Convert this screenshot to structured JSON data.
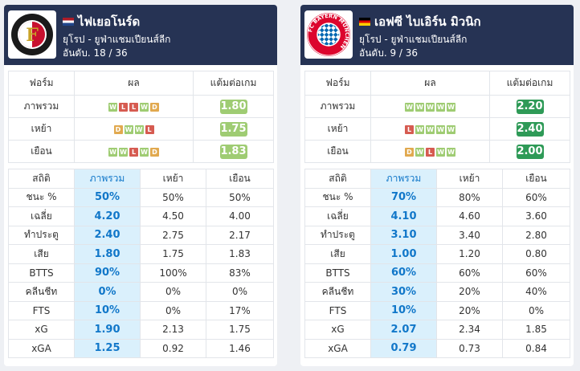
{
  "teams": [
    {
      "name": "ไฟเยอโนร์ด",
      "league": "ยุโรป - ยูฟ่าแชมเปียนส์ลีก",
      "rank": "อันดับ. 18 / 36",
      "logo_text": "F",
      "form_table": {
        "headers": [
          "ฟอร์ม",
          "ผล",
          "แต้มต่อเกม"
        ],
        "rows": [
          {
            "label": "ภาพรวม",
            "results": [
              "W",
              "L",
              "L",
              "W",
              "D"
            ],
            "ppg": "1.80",
            "ppg_color": "#9fcc73"
          },
          {
            "label": "เหย้า",
            "results": [
              "D",
              "W",
              "W",
              "L"
            ],
            "ppg": "1.75",
            "ppg_color": "#9fcc73"
          },
          {
            "label": "เยือน",
            "results": [
              "W",
              "W",
              "L",
              "W",
              "D"
            ],
            "ppg": "1.83",
            "ppg_color": "#9fcc73"
          }
        ]
      },
      "stats_table": {
        "headers": [
          "สถิติ",
          "ภาพรวม",
          "เหย้า",
          "เยือน"
        ],
        "rows": [
          {
            "label": "ชนะ %",
            "overall": "50%",
            "home": "50%",
            "away": "50%"
          },
          {
            "label": "เฉลี่ย",
            "overall": "4.20",
            "home": "4.50",
            "away": "4.00"
          },
          {
            "label": "ทำประตู",
            "overall": "2.40",
            "home": "2.75",
            "away": "2.17"
          },
          {
            "label": "เสีย",
            "overall": "1.80",
            "home": "1.75",
            "away": "1.83"
          },
          {
            "label": "BTTS",
            "overall": "90%",
            "home": "100%",
            "away": "83%"
          },
          {
            "label": "คลีนชีท",
            "overall": "0%",
            "home": "0%",
            "away": "0%"
          },
          {
            "label": "FTS",
            "overall": "10%",
            "home": "0%",
            "away": "17%"
          },
          {
            "label": "xG",
            "overall": "1.90",
            "home": "2.13",
            "away": "1.75"
          },
          {
            "label": "xGA",
            "overall": "1.25",
            "home": "0.92",
            "away": "1.46"
          }
        ]
      }
    },
    {
      "name": "เอฟซี ไบเอิร์น มิวนิก",
      "league": "ยุโรป - ยูฟ่าแชมเปียนส์ลีก",
      "rank": "อันดับ. 9 / 36",
      "logo_text": "FC BAYERN MÜNCHEN",
      "form_table": {
        "headers": [
          "ฟอร์ม",
          "ผล",
          "แต้มต่อเกม"
        ],
        "rows": [
          {
            "label": "ภาพรวม",
            "results": [
              "W",
              "W",
              "W",
              "W",
              "W"
            ],
            "ppg": "2.20",
            "ppg_color": "#2e9a57"
          },
          {
            "label": "เหย้า",
            "results": [
              "L",
              "W",
              "W",
              "W",
              "W"
            ],
            "ppg": "2.40",
            "ppg_color": "#2e9a57"
          },
          {
            "label": "เยือน",
            "results": [
              "D",
              "W",
              "L",
              "W",
              "W"
            ],
            "ppg": "2.00",
            "ppg_color": "#2e9a57"
          }
        ]
      },
      "stats_table": {
        "headers": [
          "สถิติ",
          "ภาพรวม",
          "เหย้า",
          "เยือน"
        ],
        "rows": [
          {
            "label": "ชนะ %",
            "overall": "70%",
            "home": "80%",
            "away": "60%"
          },
          {
            "label": "เฉลี่ย",
            "overall": "4.10",
            "home": "4.60",
            "away": "3.60"
          },
          {
            "label": "ทำประตู",
            "overall": "3.10",
            "home": "3.40",
            "away": "2.80"
          },
          {
            "label": "เสีย",
            "overall": "1.00",
            "home": "1.20",
            "away": "0.80"
          },
          {
            "label": "BTTS",
            "overall": "60%",
            "home": "60%",
            "away": "60%"
          },
          {
            "label": "คลีนชีท",
            "overall": "30%",
            "home": "20%",
            "away": "40%"
          },
          {
            "label": "FTS",
            "overall": "10%",
            "home": "20%",
            "away": "0%"
          },
          {
            "label": "xG",
            "overall": "2.07",
            "home": "2.34",
            "away": "1.85"
          },
          {
            "label": "xGA",
            "overall": "0.79",
            "home": "0.73",
            "away": "0.84"
          }
        ]
      }
    }
  ]
}
